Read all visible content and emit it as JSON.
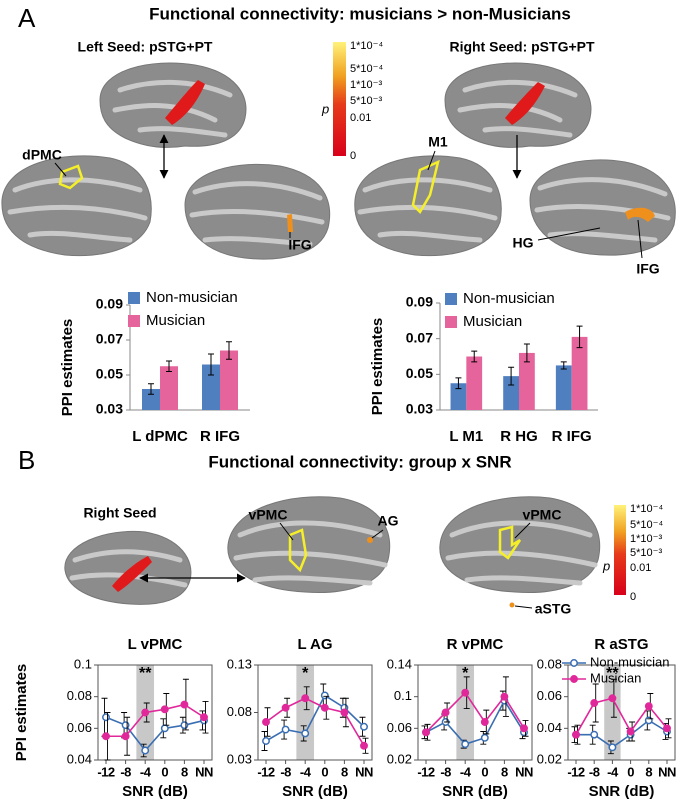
{
  "figure": {
    "panel_a": {
      "letter": "A",
      "title": "Functional connectivity: musicians > non-Musicians",
      "left_seed": "Left Seed: pSTG+PT",
      "right_seed": "Right Seed: pSTG+PT",
      "region_labels": [
        "dPMC",
        "IFG",
        "M1",
        "HG",
        "IFG"
      ],
      "colorbar": {
        "symbol": "p",
        "labels": [
          "1*10⁻⁴",
          "5*10⁻⁴",
          "1*10⁻³",
          "5*10⁻³",
          "0.01",
          "0"
        ]
      }
    },
    "panel_b": {
      "letter": "B",
      "title": "Functional connectivity: group x SNR",
      "seed": "Right Seed",
      "region_labels": [
        "vPMC",
        "AG",
        "vPMC",
        "aSTG"
      ],
      "colorbar": {
        "symbol": "p",
        "labels": [
          "1*10⁻⁴",
          "5*10⁻⁴",
          "1*10⁻³",
          "5*10⁻³",
          "0.01",
          "0"
        ]
      }
    }
  },
  "chart_data": [
    {
      "type": "bar",
      "y_label": "PPI estimates",
      "categories": [
        "L dPMC",
        "R IFG"
      ],
      "ylim": [
        0.03,
        0.09
      ],
      "yticks": [
        0.03,
        0.05,
        0.07,
        0.09
      ],
      "series": [
        {
          "name": "Non-musician",
          "color": "#4f7fbf",
          "values": [
            0.042,
            0.056
          ],
          "errors": [
            0.003,
            0.006
          ]
        },
        {
          "name": "Musician",
          "color": "#e6649c",
          "values": [
            0.055,
            0.064
          ],
          "errors": [
            0.003,
            0.005
          ]
        }
      ]
    },
    {
      "type": "bar",
      "y_label": "PPI estimates",
      "categories": [
        "L M1",
        "R HG",
        "R IFG"
      ],
      "ylim": [
        0.03,
        0.09
      ],
      "yticks": [
        0.03,
        0.05,
        0.07,
        0.09
      ],
      "series": [
        {
          "name": "Non-musician",
          "color": "#4f7fbf",
          "values": [
            0.045,
            0.049,
            0.055
          ],
          "errors": [
            0.003,
            0.005,
            0.002
          ]
        },
        {
          "name": "Musician",
          "color": "#e6649c",
          "values": [
            0.06,
            0.062,
            0.071
          ],
          "errors": [
            0.003,
            0.005,
            0.006
          ]
        }
      ]
    },
    {
      "type": "line",
      "title": "L vPMC",
      "y_label": "PPI estimates",
      "x_label": "SNR (dB)",
      "categories": [
        "-12",
        "-8",
        "-4",
        "0",
        "8",
        "NN"
      ],
      "highlight": 2,
      "annotation": "**",
      "ylim": [
        0.04,
        0.1
      ],
      "yticks": [
        0.04,
        0.06,
        0.08,
        0.1
      ],
      "series": [
        {
          "color": "#3a6eb2",
          "marker": "open",
          "values": [
            0.067,
            0.062,
            0.046,
            0.06,
            0.062,
            0.065
          ],
          "errors": [
            0.012,
            0.008,
            0.004,
            0.006,
            0.005,
            0.006
          ]
        },
        {
          "color": "#e0289a",
          "marker": "filled",
          "values": [
            0.055,
            0.055,
            0.07,
            0.072,
            0.075,
            0.067
          ],
          "errors": [
            0.015,
            0.012,
            0.006,
            0.01,
            0.016,
            0.01
          ]
        }
      ]
    },
    {
      "type": "line",
      "title": "L AG",
      "x_label": "SNR (dB)",
      "categories": [
        "-12",
        "-8",
        "-4",
        "0",
        "8",
        "NN"
      ],
      "highlight": 2,
      "annotation": "*",
      "ylim": [
        0.03,
        0.13
      ],
      "yticks": [
        0.03,
        0.08,
        0.13
      ],
      "series": [
        {
          "color": "#3a6eb2",
          "marker": "open",
          "values": [
            0.05,
            0.062,
            0.058,
            0.098,
            0.085,
            0.065
          ],
          "errors": [
            0.01,
            0.01,
            0.008,
            0.012,
            0.01,
            0.01
          ]
        },
        {
          "color": "#e0289a",
          "marker": "filled",
          "values": [
            0.07,
            0.085,
            0.095,
            0.085,
            0.08,
            0.045
          ],
          "errors": [
            0.015,
            0.01,
            0.012,
            0.012,
            0.015,
            0.008
          ]
        }
      ]
    },
    {
      "type": "line",
      "title": "R vPMC",
      "x_label": "SNR (dB)",
      "categories": [
        "-12",
        "-8",
        "-4",
        "0",
        "8",
        "NN"
      ],
      "highlight": 2,
      "annotation": "*",
      "ylim": [
        0.02,
        0.14
      ],
      "yticks": [
        0.02,
        0.06,
        0.1,
        0.14
      ],
      "series": [
        {
          "color": "#3a6eb2",
          "marker": "open",
          "values": [
            0.055,
            0.068,
            0.04,
            0.048,
            0.095,
            0.055
          ],
          "errors": [
            0.008,
            0.01,
            0.005,
            0.008,
            0.012,
            0.008
          ]
        },
        {
          "color": "#e0289a",
          "marker": "filled",
          "values": [
            0.055,
            0.08,
            0.105,
            0.068,
            0.1,
            0.06
          ],
          "errors": [
            0.01,
            0.012,
            0.02,
            0.015,
            0.025,
            0.01
          ]
        }
      ]
    },
    {
      "type": "line",
      "title": "R aSTG",
      "x_label": "SNR (dB)",
      "categories": [
        "-12",
        "-8",
        "-4",
        "0",
        "8",
        "NN"
      ],
      "highlight": 2,
      "annotation": "**",
      "ylim": [
        0.02,
        0.08
      ],
      "yticks": [
        0.02,
        0.04,
        0.06,
        0.08
      ],
      "legend": "upper right",
      "series": [
        {
          "name": "Non-musician",
          "color": "#3a6eb2",
          "marker": "open",
          "values": [
            0.036,
            0.036,
            0.028,
            0.036,
            0.045,
            0.038
          ],
          "errors": [
            0.005,
            0.006,
            0.004,
            0.004,
            0.006,
            0.005
          ]
        },
        {
          "name": "Musician",
          "color": "#e0289a",
          "marker": "filled",
          "values": [
            0.036,
            0.056,
            0.059,
            0.038,
            0.054,
            0.04
          ],
          "errors": [
            0.006,
            0.012,
            0.012,
            0.006,
            0.008,
            0.006
          ]
        }
      ]
    }
  ]
}
